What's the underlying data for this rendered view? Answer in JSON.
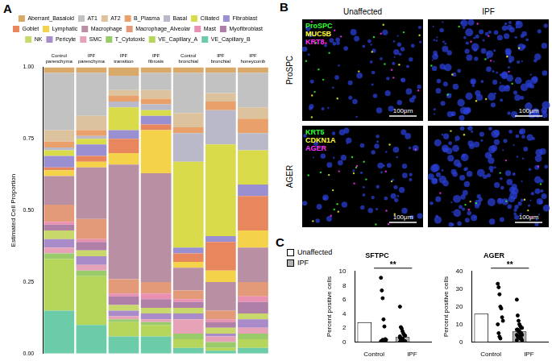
{
  "panel_labels": [
    "A",
    "B",
    "C"
  ],
  "chart_data": [
    {
      "type": "bar",
      "stacked": true,
      "grid": false,
      "legend": "top",
      "y_label": "Estimated Cell Proportion",
      "categories": [
        "Control parenchyma",
        "IPF parenchyma",
        "IPF transition",
        "IPF fibrosis",
        "Control bronchial",
        "IPF bronchial",
        "IPF honeycomb"
      ],
      "ylim": [
        0,
        1
      ],
      "yticks": [
        {
          "value": 0,
          "label": "0.00"
        },
        {
          "value": 0.25,
          "label": "0.25"
        },
        {
          "value": 0.5,
          "label": "0.50"
        },
        {
          "value": 0.75,
          "label": "0.75"
        },
        {
          "value": 1,
          "label": "1.00"
        }
      ],
      "series": [
        {
          "name": "Aberrant_Basaloid",
          "color": "#D9A96A",
          "values": [
            0.02,
            0.02,
            0.03,
            0.02,
            0.02,
            0.02,
            0.02
          ]
        },
        {
          "name": "AT1",
          "color": "#C2C2C2",
          "values": [
            0.2,
            0.15,
            0.05,
            0.06,
            0.14,
            0.07,
            0.12
          ]
        },
        {
          "name": "AT2",
          "color": "#DDC29E",
          "values": [
            0.04,
            0.05,
            0.02,
            0.03,
            0.05,
            0.03,
            0.04
          ]
        },
        {
          "name": "B_Plasma",
          "color": "#E9A06A",
          "values": [
            0.02,
            0.02,
            0.02,
            0.02,
            0.02,
            0.03,
            0.05
          ]
        },
        {
          "name": "Basal",
          "color": "#B9B9C9",
          "values": [
            0.01,
            0.01,
            0.02,
            0.02,
            0.1,
            0.12,
            0.06
          ]
        },
        {
          "name": "Ciliated",
          "color": "#D9DB4A",
          "values": [
            0.02,
            0.02,
            0.08,
            0.02,
            0.3,
            0.32,
            0.12
          ]
        },
        {
          "name": "Fibroblast",
          "color": "#9A8FD0",
          "values": [
            0.04,
            0.04,
            0.03,
            0.03,
            0.02,
            0.02,
            0.04
          ]
        },
        {
          "name": "Goblet",
          "color": "#E8875E",
          "values": [
            0.01,
            0.02,
            0.05,
            0.02,
            0.03,
            0.1,
            0.12
          ]
        },
        {
          "name": "Lymphatic",
          "color": "#F4D24A",
          "values": [
            0.02,
            0.02,
            0.04,
            0.15,
            0.02,
            0.04,
            0.06
          ]
        },
        {
          "name": "Macrophage",
          "color": "#B88FA3",
          "values": [
            0.1,
            0.18,
            0.4,
            0.38,
            0.08,
            0.1,
            0.12
          ]
        },
        {
          "name": "Macrophage_Alveolar",
          "color": "#E39A78",
          "values": [
            0.06,
            0.07,
            0.05,
            0.04,
            0.03,
            0.03,
            0.05
          ]
        },
        {
          "name": "Mast",
          "color": "#E98FB2",
          "values": [
            0.01,
            0.01,
            0.01,
            0.02,
            0.01,
            0.01,
            0.02
          ]
        },
        {
          "name": "Myofibroblast",
          "color": "#B07FA8",
          "values": [
            0.02,
            0.03,
            0.03,
            0.03,
            0.02,
            0.02,
            0.04
          ]
        },
        {
          "name": "NK",
          "color": "#C8D86A",
          "values": [
            0.03,
            0.02,
            0.02,
            0.02,
            0.02,
            0.02,
            0.02
          ]
        },
        {
          "name": "Pericyte",
          "color": "#A98BC9",
          "values": [
            0.03,
            0.03,
            0.02,
            0.02,
            0.02,
            0.01,
            0.03
          ]
        },
        {
          "name": "SMC",
          "color": "#E6A3B8",
          "values": [
            0.02,
            0.02,
            0.01,
            0.01,
            0.05,
            0.02,
            0.02
          ]
        },
        {
          "name": "T_Cytotoxic",
          "color": "#9ACB6A",
          "values": [
            0.02,
            0.02,
            0.01,
            0.01,
            0.02,
            0.02,
            0.02
          ]
        },
        {
          "name": "VE_Capillary_A",
          "color": "#B5D65A",
          "values": [
            0.18,
            0.17,
            0.05,
            0.04,
            0.03,
            0.01,
            0.03
          ]
        },
        {
          "name": "VE_Capillary_B",
          "color": "#6CCBA9",
          "values": [
            0.15,
            0.1,
            0.06,
            0.06,
            0.02,
            0.01,
            0.02
          ]
        }
      ]
    },
    {
      "type": "bar",
      "title": "SFTPC",
      "y_label": "Percent positive cells",
      "grid": false,
      "categories": [
        "Control",
        "IPF"
      ],
      "values": [
        2.8,
        0.7
      ],
      "colors": [
        "#ffffff",
        "#b3b3b3"
      ],
      "points": [
        [
          9.1,
          7.3,
          6.2,
          3.2,
          2.2,
          0.4,
          0.3,
          0.1,
          0.05,
          0.3,
          0.2
        ],
        [
          5.0,
          2.1,
          1.9,
          1.5,
          1.2,
          1.0,
          0.9,
          0.6,
          0.4,
          0.3,
          0.2,
          0.1,
          0.1,
          0.05,
          0,
          0,
          0.3,
          0.5,
          0.2,
          0,
          0.1,
          0.8
        ]
      ],
      "annotation": "**",
      "ylim": [
        0,
        10
      ],
      "yticks": [
        0,
        2,
        4,
        6,
        8,
        10
      ]
    },
    {
      "type": "bar",
      "title": "AGER",
      "y_label": "Percent positive cells",
      "grid": false,
      "categories": [
        "Control",
        "IPF"
      ],
      "values": [
        16,
        6
      ],
      "colors": [
        "#ffffff",
        "#b3b3b3"
      ],
      "points": [
        [
          33,
          31,
          27,
          20,
          19,
          14,
          12,
          10,
          5,
          3,
          2
        ],
        [
          24,
          15,
          12,
          10,
          9,
          8,
          8,
          7,
          7,
          6,
          6,
          5,
          5,
          4,
          4,
          3,
          3,
          3,
          2,
          2,
          1,
          1
        ]
      ],
      "annotation": "**",
      "ylim": [
        0,
        40
      ],
      "yticks": [
        0,
        10,
        20,
        30,
        40
      ]
    }
  ],
  "panel_c_legend": [
    {
      "name": "Unaffected",
      "color": "#ffffff"
    },
    {
      "name": "IPF",
      "color": "#b3b3b3"
    }
  ],
  "image_panel": {
    "columns": [
      "Unaffected",
      "IPF"
    ],
    "rows": [
      {
        "label": "ProSPC",
        "stains": [
          {
            "name": "ProSPC",
            "color": "#33ff33"
          },
          {
            "name": "MUC5B",
            "color": "#ffff33"
          },
          {
            "name": "KRT8",
            "color": "#ff33ff"
          }
        ]
      },
      {
        "label": "AGER",
        "stains": [
          {
            "name": "KRT5",
            "color": "#33ff33"
          },
          {
            "name": "CDKN1A",
            "color": "#ffff33"
          },
          {
            "name": "AGER",
            "color": "#ff33ff"
          }
        ]
      }
    ],
    "scale_bar": "100μm"
  }
}
